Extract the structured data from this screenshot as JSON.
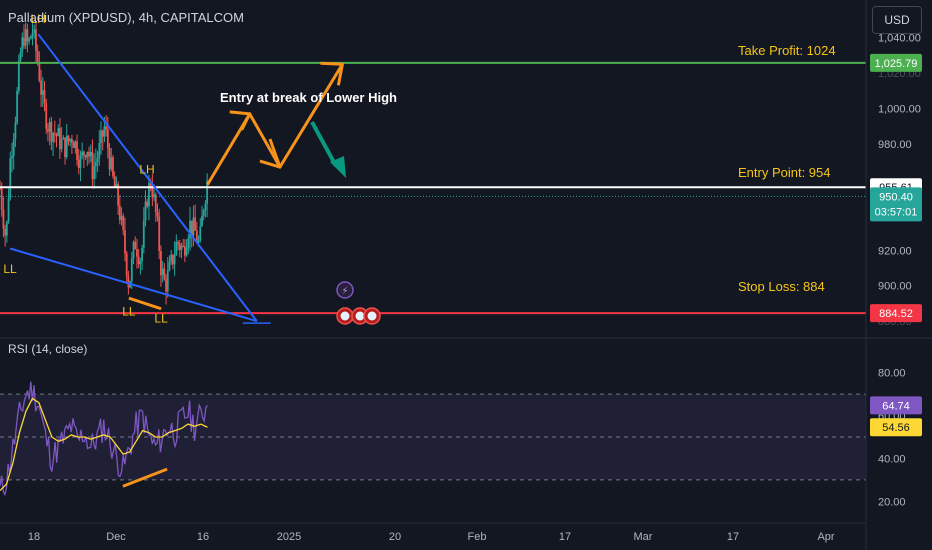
{
  "header": {
    "title": "Palladium (XPDUSD), 4h, CAPITALCOM",
    "currency_button": "USD"
  },
  "rsi": {
    "title": "RSI (14, close)",
    "axis_ticks": [
      "80.00",
      "60.00",
      "40.00",
      "20.00"
    ],
    "value_label": "64.74",
    "ma_label": "54.56"
  },
  "annotations": {
    "entry_text": "Entry at break of Lower High",
    "take_profit": "Take Profit: 1024",
    "entry_point": "Entry Point: 954",
    "stop_loss": "Stop Loss: 884",
    "swing_labels": [
      "LH",
      "LH",
      "LL",
      "LL",
      "LL"
    ]
  },
  "price_labels": {
    "take_profit": "1,025.79",
    "entry": "955.61",
    "current": "950.40",
    "countdown": "03:57:01",
    "stop_loss": "884.52",
    "partial_top": "1,020.00",
    "partial_bottom": "880.00"
  },
  "price_axis_ticks": [
    "1,040.00",
    "1,000.00",
    "980.00",
    "920.00",
    "900.00"
  ],
  "time_axis": [
    "18",
    "Dec",
    "16",
    "2025",
    "20",
    "Feb",
    "17",
    "Mar",
    "17",
    "Apr"
  ],
  "colors": {
    "background": "#131722",
    "bull": "#26a69a",
    "bear": "#ef5350",
    "trendline": "#2962ff",
    "take_profit_line": "#4caf50",
    "stop_loss_line": "#f23645",
    "entry_line": "#ffffff",
    "arrow": "#f7931a",
    "teal_arrow": "#089981",
    "rsi_line": "#7e57c2",
    "rsi_ma": "#fdd835"
  },
  "chart_data": [
    {
      "type": "candlestick",
      "title": "Palladium (XPDUSD), 4h, CAPITALCOM",
      "y_unit": "USD",
      "ylim": [
        875,
        1050
      ],
      "price_path": [
        [
          0,
          955
        ],
        [
          6,
          925
        ],
        [
          10,
          970
        ],
        [
          16,
          1000
        ],
        [
          20,
          1030
        ],
        [
          24,
          1042
        ],
        [
          28,
          1035
        ],
        [
          32,
          1045
        ],
        [
          38,
          1025
        ],
        [
          42,
          1005
        ],
        [
          48,
          990
        ],
        [
          56,
          985
        ],
        [
          64,
          978
        ],
        [
          72,
          985
        ],
        [
          80,
          970
        ],
        [
          86,
          980
        ],
        [
          92,
          965
        ],
        [
          98,
          975
        ],
        [
          104,
          990
        ],
        [
          108,
          975
        ],
        [
          112,
          960
        ],
        [
          118,
          945
        ],
        [
          124,
          920
        ],
        [
          128,
          900
        ],
        [
          134,
          925
        ],
        [
          140,
          915
        ],
        [
          146,
          950
        ],
        [
          150,
          960
        ],
        [
          156,
          935
        ],
        [
          160,
          910
        ],
        [
          164,
          900
        ],
        [
          170,
          912
        ],
        [
          176,
          925
        ],
        [
          182,
          920
        ],
        [
          188,
          935
        ],
        [
          194,
          930
        ],
        [
          198,
          922
        ],
        [
          202,
          945
        ],
        [
          206,
          960
        ]
      ],
      "levels": {
        "take_profit": 1025.79,
        "entry": 955.61,
        "current": 950.4,
        "stop_loss": 884.52
      },
      "trendlines": {
        "upper": [
          [
            38,
            1042
          ],
          [
            255,
            880
          ]
        ],
        "lower": [
          [
            10,
            921
          ],
          [
            255,
            880
          ]
        ]
      },
      "projection": [
        [
          206,
          957
        ],
        [
          248,
          997
        ],
        [
          278,
          967
        ],
        [
          340,
          1025
        ]
      ],
      "swing_points": [
        {
          "label": "LH",
          "x": 38,
          "y": 1045
        },
        {
          "label": "LH",
          "x": 146,
          "y": 960
        },
        {
          "label": "LL",
          "x": 10,
          "y": 915
        },
        {
          "label": "LL",
          "x": 128,
          "y": 891
        },
        {
          "label": "LL",
          "x": 160,
          "y": 887
        }
      ],
      "grid": false
    },
    {
      "type": "line",
      "title": "RSI (14, close)",
      "ylim": [
        15,
        85
      ],
      "bands": [
        70,
        50,
        30
      ],
      "series": [
        {
          "name": "RSI",
          "values": [
            25,
            30,
            45,
            60,
            70,
            72,
            65,
            50,
            40,
            45,
            50,
            55,
            48,
            52,
            45,
            50,
            55,
            48,
            40,
            35,
            45,
            55,
            60,
            50,
            45,
            50,
            55,
            52,
            58,
            62,
            55,
            60,
            64.74
          ]
        },
        {
          "name": "MA",
          "values": [
            25,
            28,
            38,
            52,
            62,
            68,
            66,
            58,
            50,
            48,
            49,
            51,
            50,
            50,
            49,
            50,
            51,
            50,
            46,
            42,
            43,
            48,
            53,
            52,
            50,
            50,
            52,
            53,
            54,
            56,
            55,
            56,
            54.56
          ]
        }
      ],
      "divergence": [
        [
          128,
          27
        ],
        [
          160,
          35
        ]
      ],
      "grid": false
    }
  ]
}
